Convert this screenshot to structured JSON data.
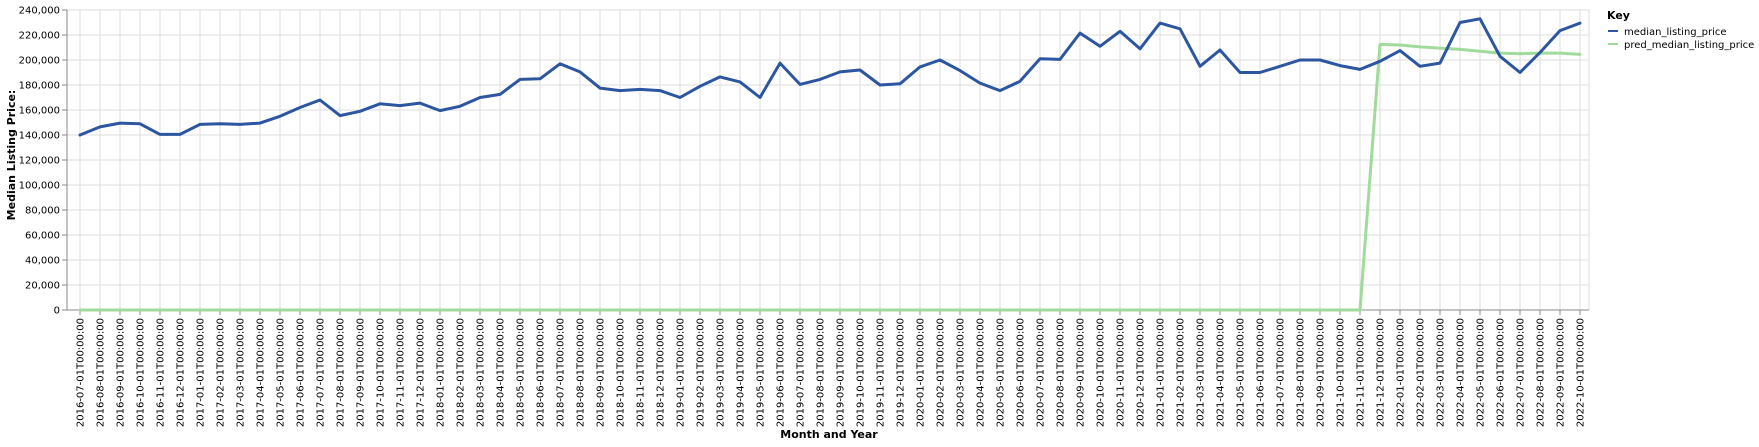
{
  "chart_data": {
    "type": "line",
    "xlabel": "Month and Year",
    "ylabel": "Median Listing Price:",
    "ylim": [
      0,
      240000
    ],
    "yticks": [
      0,
      20000,
      40000,
      60000,
      80000,
      100000,
      120000,
      140000,
      160000,
      180000,
      200000,
      220000,
      240000
    ],
    "ytick_labels": [
      "0",
      "20,000",
      "40,000",
      "60,000",
      "80,000",
      "100,000",
      "120,000",
      "140,000",
      "160,000",
      "180,000",
      "200,000",
      "220,000",
      "240,000"
    ],
    "grid": true,
    "legend": {
      "title": "Key",
      "position": "right"
    },
    "x": [
      "2016-07-01T00:00:00",
      "2016-08-01T00:00:00",
      "2016-09-01T00:00:00",
      "2016-10-01T00:00:00",
      "2016-11-01T00:00:00",
      "2016-12-01T00:00:00",
      "2017-01-01T00:00:00",
      "2017-02-01T00:00:00",
      "2017-03-01T00:00:00",
      "2017-04-01T00:00:00",
      "2017-05-01T00:00:00",
      "2017-06-01T00:00:00",
      "2017-07-01T00:00:00",
      "2017-08-01T00:00:00",
      "2017-09-01T00:00:00",
      "2017-10-01T00:00:00",
      "2017-11-01T00:00:00",
      "2017-12-01T00:00:00",
      "2018-01-01T00:00:00",
      "2018-02-01T00:00:00",
      "2018-03-01T00:00:00",
      "2018-04-01T00:00:00",
      "2018-05-01T00:00:00",
      "2018-06-01T00:00:00",
      "2018-07-01T00:00:00",
      "2018-08-01T00:00:00",
      "2018-09-01T00:00:00",
      "2018-10-01T00:00:00",
      "2018-11-01T00:00:00",
      "2018-12-01T00:00:00",
      "2019-01-01T00:00:00",
      "2019-02-01T00:00:00",
      "2019-03-01T00:00:00",
      "2019-04-01T00:00:00",
      "2019-05-01T00:00:00",
      "2019-06-01T00:00:00",
      "2019-07-01T00:00:00",
      "2019-08-01T00:00:00",
      "2019-09-01T00:00:00",
      "2019-10-01T00:00:00",
      "2019-11-01T00:00:00",
      "2019-12-01T00:00:00",
      "2020-01-01T00:00:00",
      "2020-02-01T00:00:00",
      "2020-03-01T00:00:00",
      "2020-04-01T00:00:00",
      "2020-05-01T00:00:00",
      "2020-06-01T00:00:00",
      "2020-07-01T00:00:00",
      "2020-08-01T00:00:00",
      "2020-09-01T00:00:00",
      "2020-10-01T00:00:00",
      "2020-11-01T00:00:00",
      "2020-12-01T00:00:00",
      "2021-01-01T00:00:00",
      "2021-02-01T00:00:00",
      "2021-03-01T00:00:00",
      "2021-04-01T00:00:00",
      "2021-05-01T00:00:00",
      "2021-06-01T00:00:00",
      "2021-07-01T00:00:00",
      "2021-08-01T00:00:00",
      "2021-09-01T00:00:00",
      "2021-10-01T00:00:00",
      "2021-11-01T00:00:00",
      "2021-12-01T00:00:00",
      "2022-01-01T00:00:00",
      "2022-02-01T00:00:00",
      "2022-03-01T00:00:00",
      "2022-04-01T00:00:00",
      "2022-05-01T00:00:00",
      "2022-06-01T00:00:00",
      "2022-07-01T00:00:00",
      "2022-08-01T00:00:00",
      "2022-09-01T00:00:00",
      "2022-10-01T00:00:00"
    ],
    "series": [
      {
        "name": "median_listing_price",
        "color": "#2c56a0",
        "values": [
          140000,
          146500,
          149500,
          149000,
          140500,
          140500,
          148500,
          149000,
          148500,
          149500,
          155000,
          162000,
          168000,
          155500,
          159000,
          165000,
          163500,
          165500,
          159500,
          163000,
          170000,
          172500,
          184500,
          185000,
          197000,
          190500,
          177500,
          175500,
          176500,
          175500,
          170000,
          179000,
          186500,
          182500,
          170000,
          197500,
          180500,
          184500,
          190500,
          192000,
          180000,
          181000,
          194500,
          200000,
          191500,
          181500,
          175500,
          183000,
          201000,
          200500,
          221500,
          211000,
          223000,
          209000,
          229500,
          225000,
          195000,
          208000,
          190000,
          190000,
          195000,
          200000,
          200000,
          195500,
          192500,
          199000,
          207500,
          195000,
          197500,
          230000,
          233000,
          203000,
          190000,
          206000,
          223500,
          229500
        ]
      },
      {
        "name": "pred_median_listing_price",
        "color": "#a1db9c",
        "values": [
          0,
          0,
          0,
          0,
          0,
          0,
          0,
          0,
          0,
          0,
          0,
          0,
          0,
          0,
          0,
          0,
          0,
          0,
          0,
          0,
          0,
          0,
          0,
          0,
          0,
          0,
          0,
          0,
          0,
          0,
          0,
          0,
          0,
          0,
          0,
          0,
          0,
          0,
          0,
          0,
          0,
          0,
          0,
          0,
          0,
          0,
          0,
          0,
          0,
          0,
          0,
          0,
          0,
          0,
          0,
          0,
          0,
          0,
          0,
          0,
          0,
          0,
          0,
          0,
          0,
          212500,
          212000,
          210500,
          209500,
          208500,
          207000,
          205500,
          205000,
          205500,
          205500,
          204500
        ]
      }
    ]
  }
}
